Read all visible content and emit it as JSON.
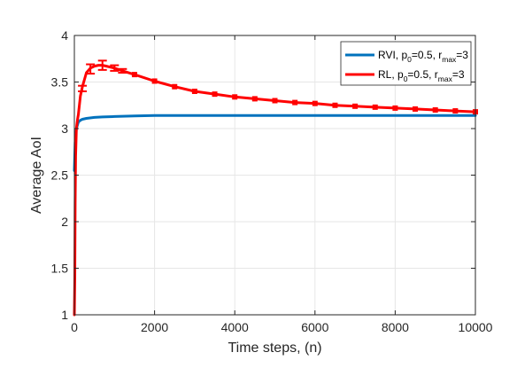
{
  "chart_data": {
    "type": "line",
    "xlabel": "Time steps, (n)",
    "ylabel": "Average AoI",
    "xlim": [
      0,
      10000
    ],
    "ylim": [
      1,
      4
    ],
    "xticks": [
      0,
      2000,
      4000,
      6000,
      8000,
      10000
    ],
    "yticks": [
      1,
      1.5,
      2,
      2.5,
      3,
      3.5,
      4
    ],
    "xtick_labels": [
      "0",
      "2000",
      "4000",
      "6000",
      "8000",
      "10000"
    ],
    "ytick_labels": [
      "1",
      "1.5",
      "2",
      "2.5",
      "3",
      "3.5",
      "4"
    ],
    "grid": true,
    "legend_position": "top-right",
    "series": [
      {
        "legend": {
          "pre": "RVI, p",
          "sub1": "0",
          "mid": "=0.5, r",
          "sub2": "max",
          "post": "=3"
        },
        "color": "#0072BD",
        "x": [
          1,
          20,
          50,
          100,
          150,
          200,
          300,
          500,
          700,
          1000,
          1500,
          2000,
          3000,
          4000,
          5000,
          6000,
          7000,
          8000,
          9000,
          10000
        ],
        "y": [
          2.55,
          2.85,
          3.0,
          3.07,
          3.09,
          3.1,
          3.11,
          3.12,
          3.125,
          3.13,
          3.135,
          3.14,
          3.14,
          3.14,
          3.14,
          3.14,
          3.14,
          3.14,
          3.14,
          3.14
        ]
      },
      {
        "legend": {
          "pre": "RL, p",
          "sub1": "0",
          "mid": "=0.5, r",
          "sub2": "max",
          "post": "=3"
        },
        "color": "#FF0000",
        "x": [
          1,
          10,
          20,
          30,
          50,
          80,
          100,
          150,
          200,
          300,
          400,
          500,
          600,
          700,
          800,
          1000,
          1200,
          1500,
          2000,
          2500,
          3000,
          3500,
          4000,
          4500,
          5000,
          5500,
          6000,
          6500,
          7000,
          7500,
          8000,
          8500,
          9000,
          9500,
          10000
        ],
        "y": [
          1.0,
          1.4,
          2.2,
          2.7,
          3.0,
          3.1,
          3.15,
          3.35,
          3.45,
          3.6,
          3.65,
          3.67,
          3.68,
          3.68,
          3.67,
          3.65,
          3.62,
          3.58,
          3.51,
          3.45,
          3.4,
          3.37,
          3.34,
          3.32,
          3.3,
          3.28,
          3.27,
          3.25,
          3.24,
          3.23,
          3.22,
          3.21,
          3.2,
          3.19,
          3.18
        ]
      }
    ],
    "error_bars": {
      "series": 1,
      "x": [
        200,
        400,
        700,
        1000,
        1200
      ],
      "y": [
        3.43,
        3.64,
        3.68,
        3.65,
        3.62
      ],
      "err": [
        0.03,
        0.05,
        0.05,
        0.03,
        0.02
      ]
    },
    "markers": {
      "series": 1,
      "x": [
        1500,
        2000,
        2500,
        3000,
        3500,
        4000,
        4500,
        5000,
        5500,
        6000,
        6500,
        7000,
        7500,
        8000,
        8500,
        9000,
        9500,
        10000
      ],
      "y": [
        3.58,
        3.51,
        3.45,
        3.4,
        3.37,
        3.34,
        3.32,
        3.3,
        3.28,
        3.27,
        3.25,
        3.24,
        3.23,
        3.22,
        3.21,
        3.2,
        3.19,
        3.18
      ]
    }
  }
}
